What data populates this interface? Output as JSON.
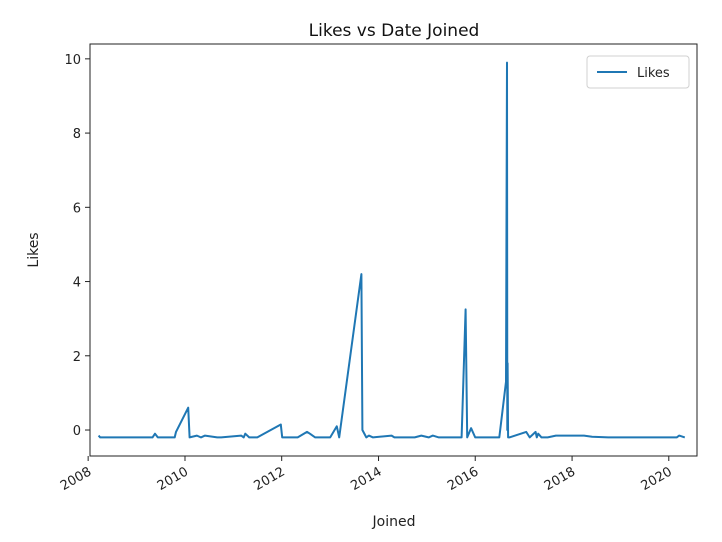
{
  "chart_data": {
    "type": "line",
    "title": "Likes vs Date Joined",
    "xlabel": "Joined",
    "ylabel": "Likes",
    "xlim": [
      "2008-01-15",
      "2020-08-01"
    ],
    "ylim": [
      -0.7,
      10.4
    ],
    "yticks": [
      0,
      2,
      4,
      6,
      8,
      10
    ],
    "xticks": [
      {
        "date": "2008-01-01",
        "label": "2008"
      },
      {
        "date": "2010-01-01",
        "label": "2010"
      },
      {
        "date": "2012-01-01",
        "label": "2012"
      },
      {
        "date": "2014-01-01",
        "label": "2014"
      },
      {
        "date": "2016-01-01",
        "label": "2016"
      },
      {
        "date": "2018-01-01",
        "label": "2018"
      },
      {
        "date": "2020-01-01",
        "label": "2020"
      }
    ],
    "grid": false,
    "legend_position": "top-right",
    "color": "#1f77b4",
    "series": [
      {
        "name": "Likes",
        "x": [
          "2008-03-20",
          "2008-04-01",
          "2009-05-01",
          "2009-05-20",
          "2009-06-10",
          "2009-10-15",
          "2009-10-25",
          "2010-01-25",
          "2010-02-05",
          "2010-04-01",
          "2010-05-01",
          "2010-06-01",
          "2010-09-01",
          "2010-10-01",
          "2011-03-01",
          "2011-03-20",
          "2011-04-01",
          "2011-05-01",
          "2011-07-01",
          "2011-12-25",
          "2012-01-05",
          "2012-05-01",
          "2012-07-10",
          "2012-08-01",
          "2012-09-10",
          "2013-01-01",
          "2013-02-20",
          "2013-03-10",
          "2013-08-25",
          "2013-09-01",
          "2013-10-01",
          "2013-10-20",
          "2013-11-20",
          "2014-04-10",
          "2014-05-01",
          "2014-06-15",
          "2014-07-01",
          "2014-10-01",
          "2014-11-20",
          "2015-01-15",
          "2015-02-15",
          "2015-04-01",
          "2015-09-01",
          "2015-09-20",
          "2015-10-20",
          "2015-11-01",
          "2015-12-01",
          "2016-01-01",
          "2016-07-01",
          "2016-08-20",
          "2016-08-28",
          "2016-08-30",
          "2016-09-01",
          "2016-09-05",
          "2016-09-15",
          "2017-01-20",
          "2017-02-15",
          "2017-04-01",
          "2017-04-10",
          "2017-04-20",
          "2017-05-15",
          "2017-07-01",
          "2017-09-01",
          "2017-10-01",
          "2018-04-01",
          "2018-06-01",
          "2018-10-01",
          "2019-05-01",
          "2019-10-01",
          "2020-01-15",
          "2020-03-01",
          "2020-03-20",
          "2020-05-01"
        ],
        "values": [
          -0.15,
          -0.2,
          -0.2,
          -0.1,
          -0.2,
          -0.2,
          -0.05,
          0.6,
          -0.2,
          -0.15,
          -0.2,
          -0.15,
          -0.2,
          -0.2,
          -0.15,
          -0.2,
          -0.1,
          -0.2,
          -0.2,
          0.15,
          -0.2,
          -0.2,
          -0.05,
          -0.1,
          -0.2,
          -0.2,
          0.1,
          -0.2,
          4.2,
          0.0,
          -0.2,
          -0.15,
          -0.2,
          -0.15,
          -0.2,
          -0.2,
          -0.2,
          -0.2,
          -0.15,
          -0.2,
          -0.15,
          -0.2,
          -0.2,
          -0.2,
          3.25,
          -0.2,
          0.05,
          -0.2,
          -0.2,
          1.3,
          9.9,
          0.0,
          1.8,
          -0.2,
          -0.2,
          -0.05,
          -0.2,
          -0.05,
          -0.2,
          -0.1,
          -0.2,
          -0.2,
          -0.15,
          -0.15,
          -0.15,
          -0.18,
          -0.2,
          -0.2,
          -0.2,
          -0.2,
          -0.2,
          -0.15,
          -0.2
        ]
      }
    ]
  }
}
